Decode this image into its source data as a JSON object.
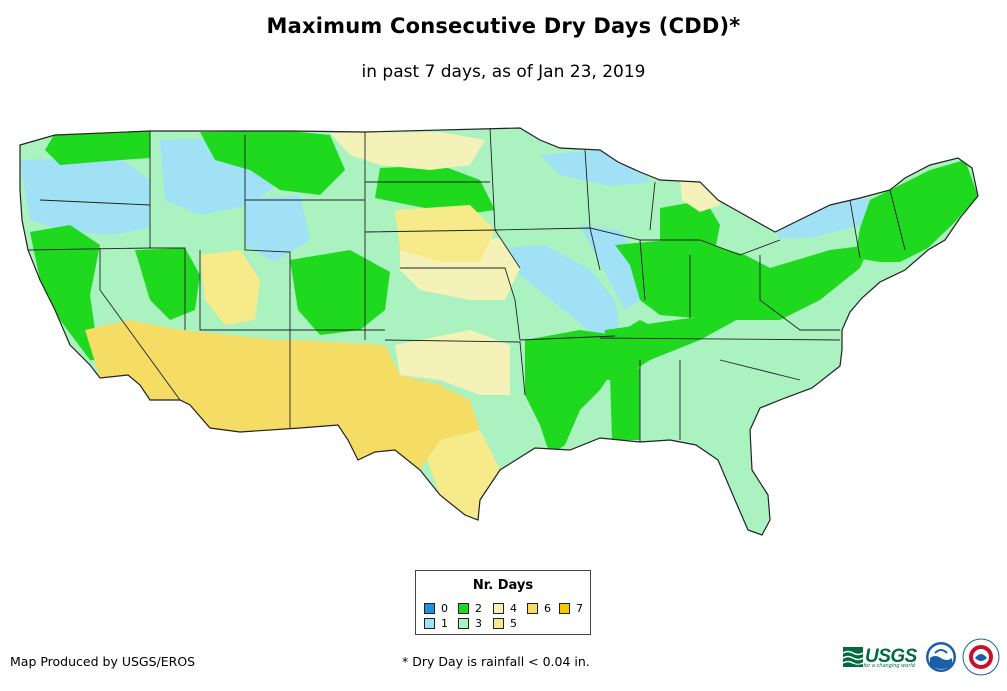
{
  "header": {
    "title": "Maximum Consecutive Dry Days (CDD)*",
    "subtitle": "in past 7 days, as of Jan 23, 2019"
  },
  "legend": {
    "title": "Nr. Days",
    "items": [
      {
        "label": "0",
        "color": "#1e90e0"
      },
      {
        "label": "1",
        "color": "#a0e1f5"
      },
      {
        "label": "2",
        "color": "#1ed91e"
      },
      {
        "label": "3",
        "color": "#abf2c1"
      },
      {
        "label": "4",
        "color": "#f4f2b8"
      },
      {
        "label": "5",
        "color": "#f6ea8a"
      },
      {
        "label": "6",
        "color": "#f5dc64"
      },
      {
        "label": "7",
        "color": "#f5c800"
      }
    ]
  },
  "footer": {
    "credit": "Map Produced by USGS/EROS",
    "footnote": "* Dry Day is rainfall < 0.04 in.",
    "usgs_label": "USGS",
    "usgs_tagline": "science for a changing world"
  },
  "colors": {
    "border": "#222222",
    "usgs_green": "#006b3f",
    "noaa_blue": "#1b5fa8",
    "nws_red": "#c8102e"
  }
}
